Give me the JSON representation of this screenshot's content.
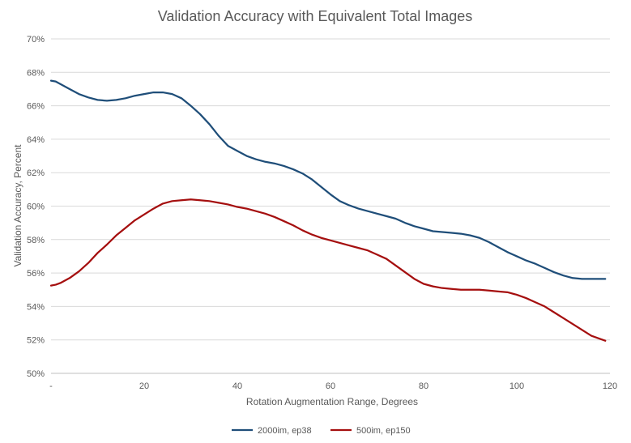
{
  "chart_data": {
    "type": "line",
    "title": "Validation Accuracy with Equivalent Total Images",
    "xlabel": "Rotation Augmentation Range, Degrees",
    "ylabel": "Validation Accuracy, Percent",
    "xlim": [
      0,
      120
    ],
    "ylim": [
      50,
      70
    ],
    "x_ticks": [
      0,
      20,
      40,
      60,
      80,
      100,
      120
    ],
    "x_tick_labels": [
      "-",
      "20",
      "40",
      "60",
      "80",
      "100",
      "120"
    ],
    "y_ticks": [
      50,
      52,
      54,
      56,
      58,
      60,
      62,
      64,
      66,
      68,
      70
    ],
    "y_tick_labels": [
      "50%",
      "52%",
      "54%",
      "56%",
      "58%",
      "60%",
      "62%",
      "64%",
      "66%",
      "68%",
      "70%"
    ],
    "grid": "horizontal",
    "legend_position": "bottom",
    "series": [
      {
        "name": "2000im, ep38",
        "color": "#1f4e79",
        "x": [
          0,
          1,
          2,
          4,
          6,
          8,
          10,
          12,
          14,
          16,
          18,
          20,
          22,
          24,
          26,
          28,
          30,
          32,
          34,
          36,
          38,
          40,
          42,
          44,
          46,
          48,
          50,
          52,
          54,
          56,
          58,
          60,
          62,
          64,
          66,
          68,
          70,
          72,
          74,
          76,
          78,
          80,
          82,
          84,
          86,
          88,
          90,
          92,
          94,
          96,
          98,
          100,
          102,
          104,
          106,
          108,
          110,
          112,
          114,
          116,
          118,
          119
        ],
        "y": [
          67.5,
          67.45,
          67.3,
          67.0,
          66.7,
          66.5,
          66.35,
          66.3,
          66.35,
          66.45,
          66.6,
          66.7,
          66.8,
          66.8,
          66.7,
          66.45,
          66.0,
          65.5,
          64.9,
          64.2,
          63.6,
          63.3,
          63.0,
          62.8,
          62.65,
          62.55,
          62.4,
          62.2,
          61.95,
          61.6,
          61.15,
          60.7,
          60.3,
          60.05,
          59.85,
          59.7,
          59.55,
          59.4,
          59.25,
          59.0,
          58.8,
          58.65,
          58.5,
          58.45,
          58.4,
          58.35,
          58.25,
          58.1,
          57.85,
          57.55,
          57.25,
          57.0,
          56.75,
          56.55,
          56.3,
          56.05,
          55.85,
          55.7,
          55.65,
          55.65,
          55.65,
          55.65
        ]
      },
      {
        "name": "500im, ep150",
        "color": "#a50f0f",
        "x": [
          0,
          1,
          2,
          4,
          6,
          8,
          10,
          12,
          14,
          16,
          18,
          20,
          22,
          24,
          26,
          28,
          30,
          32,
          34,
          36,
          38,
          40,
          42,
          44,
          46,
          48,
          50,
          52,
          54,
          56,
          58,
          60,
          62,
          64,
          66,
          68,
          70,
          72,
          74,
          76,
          78,
          80,
          82,
          84,
          86,
          88,
          90,
          92,
          94,
          96,
          98,
          100,
          102,
          104,
          106,
          108,
          110,
          112,
          114,
          116,
          118,
          119
        ],
        "y": [
          55.25,
          55.3,
          55.4,
          55.7,
          56.1,
          56.6,
          57.2,
          57.7,
          58.25,
          58.7,
          59.15,
          59.5,
          59.85,
          60.15,
          60.3,
          60.35,
          60.4,
          60.35,
          60.3,
          60.2,
          60.1,
          59.95,
          59.85,
          59.7,
          59.55,
          59.35,
          59.1,
          58.85,
          58.55,
          58.3,
          58.1,
          57.95,
          57.8,
          57.65,
          57.5,
          57.35,
          57.1,
          56.85,
          56.45,
          56.05,
          55.65,
          55.35,
          55.2,
          55.1,
          55.05,
          55.0,
          55.0,
          55.0,
          54.95,
          54.9,
          54.85,
          54.7,
          54.5,
          54.25,
          54.0,
          53.65,
          53.3,
          52.95,
          52.6,
          52.25,
          52.05,
          51.95
        ]
      }
    ]
  }
}
